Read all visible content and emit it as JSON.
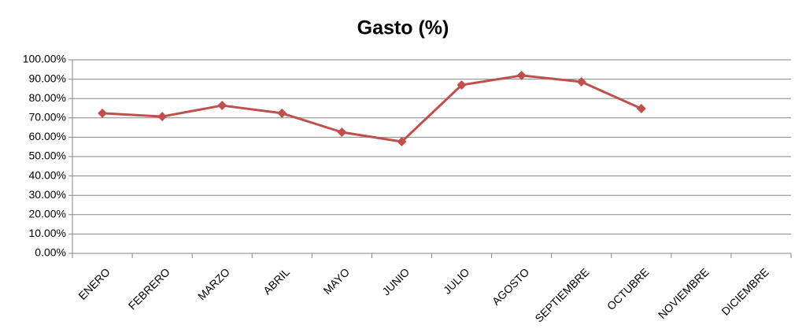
{
  "chart_data": {
    "type": "line",
    "title": "Gasto (%)",
    "categories": [
      "ENERO",
      "FEBRERO",
      "MARZO",
      "ABRIL",
      "MAYO",
      "JUNIO",
      "JULIO",
      "AGOSTO",
      "SEPTIEMBRE",
      "OCTUBRE",
      "NOVIEMBRE",
      "DICIEMBRE"
    ],
    "series": [
      {
        "color": "#c0504d",
        "values": [
          72.4,
          70.7,
          76.4,
          72.4,
          62.6,
          57.7,
          87.0,
          91.9,
          88.6,
          74.8,
          null,
          null
        ]
      }
    ],
    "ylim": [
      0,
      100
    ],
    "yticks": [
      {
        "value": 0,
        "label": "0.00%"
      },
      {
        "value": 10,
        "label": "10.00%"
      },
      {
        "value": 20,
        "label": "20.00%"
      },
      {
        "value": 30,
        "label": "30.00%"
      },
      {
        "value": 40,
        "label": "40.00%"
      },
      {
        "value": 50,
        "label": "50.00%"
      },
      {
        "value": 60,
        "label": "60.00%"
      },
      {
        "value": 70,
        "label": "70.00%"
      },
      {
        "value": 80,
        "label": "80.00%"
      },
      {
        "value": 90,
        "label": "90.00%"
      },
      {
        "value": 100,
        "label": "100.00%"
      }
    ],
    "grid": true
  }
}
